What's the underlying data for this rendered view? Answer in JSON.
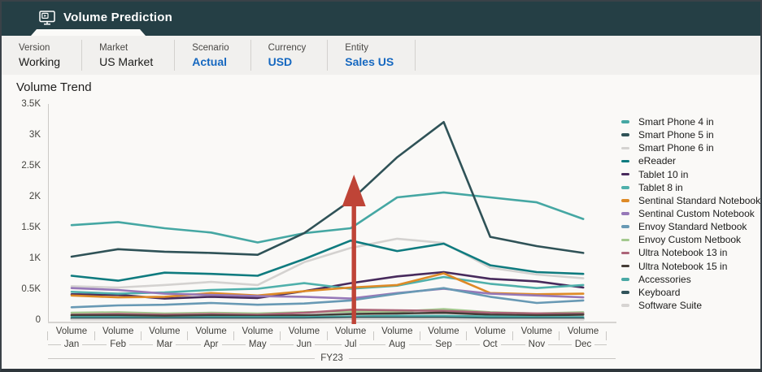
{
  "header": {
    "title": "Volume Prediction",
    "icon": "monitor-play-icon"
  },
  "colors": {
    "header_bg": "#253F45",
    "pov_link_blue": "#1668C0",
    "annotation_red": "#BF4437"
  },
  "pov": {
    "items": [
      {
        "label": "Version",
        "value": "Working",
        "link": false
      },
      {
        "label": "Market",
        "value": "US Market",
        "link": false
      },
      {
        "label": "Scenario",
        "value": "Actual",
        "link": true
      },
      {
        "label": "Currency",
        "value": "USD",
        "link": true
      },
      {
        "label": "Entity",
        "value": "Sales US",
        "link": true
      }
    ]
  },
  "chart_data": {
    "type": "line",
    "title": "Volume Trend",
    "legend_position": "right",
    "grid": false,
    "y_axis": {
      "min": 0,
      "max": 3500,
      "ticks": [
        "3.5K",
        "3K",
        "2.5K",
        "2K",
        "1.5K",
        "1K",
        "0.5K",
        "0"
      ]
    },
    "x_axis": {
      "measure_label": "Volume",
      "group_label": "FY23",
      "categories": [
        "Jan",
        "Feb",
        "Mar",
        "Apr",
        "May",
        "Jun",
        "Jul",
        "Aug",
        "Sep",
        "Oct",
        "Nov",
        "Dec"
      ]
    },
    "annotation": {
      "shape": "arrow-up",
      "color": "#BF4437",
      "x_category": "Jul"
    },
    "series": [
      {
        "name": "Smart Phone 4 in",
        "color": "#45A7A3",
        "values": [
          1550,
          1600,
          1500,
          1430,
          1270,
          1420,
          1500,
          2000,
          2080,
          2000,
          1920,
          1650
        ]
      },
      {
        "name": "Smart Phone 5 in",
        "color": "#2F5257",
        "values": [
          1040,
          1160,
          1120,
          1100,
          1070,
          1420,
          1950,
          2650,
          3220,
          1360,
          1210,
          1100
        ]
      },
      {
        "name": "Smart Phone 6 in",
        "color": "#D4D2D0",
        "values": [
          560,
          540,
          580,
          630,
          580,
          950,
          1180,
          1330,
          1260,
          860,
          750,
          690
        ]
      },
      {
        "name": "eReader",
        "color": "#0F7B7F",
        "values": [
          730,
          650,
          780,
          760,
          730,
          1000,
          1300,
          1130,
          1250,
          900,
          790,
          760
        ]
      },
      {
        "name": "Tablet 10 in",
        "color": "#472A5C",
        "values": [
          430,
          420,
          360,
          390,
          370,
          480,
          610,
          720,
          790,
          680,
          640,
          540
        ]
      },
      {
        "name": "Tablet 8 in",
        "color": "#4FB0AB",
        "values": [
          470,
          440,
          460,
          500,
          520,
          610,
          520,
          570,
          710,
          600,
          530,
          580
        ]
      },
      {
        "name": "Sentinal Standard Notebook",
        "color": "#DE8A26",
        "values": [
          410,
          380,
          390,
          450,
          410,
          480,
          540,
          580,
          770,
          450,
          430,
          440
        ]
      },
      {
        "name": "Sentinal Custom Notebook",
        "color": "#9678B8",
        "values": [
          530,
          500,
          440,
          420,
          400,
          390,
          360,
          450,
          520,
          440,
          410,
          380
        ]
      },
      {
        "name": "Envoy Standard Netbook",
        "color": "#6899B4",
        "values": [
          220,
          250,
          260,
          290,
          260,
          280,
          330,
          440,
          530,
          390,
          290,
          330
        ]
      },
      {
        "name": "Envoy Custom Netbook",
        "color": "#A3C98E",
        "values": [
          130,
          140,
          120,
          130,
          120,
          140,
          150,
          150,
          190,
          140,
          120,
          140
        ]
      },
      {
        "name": "Ultra Notebook 13 in",
        "color": "#AC6478",
        "values": [
          100,
          110,
          100,
          110,
          100,
          130,
          180,
          170,
          160,
          130,
          120,
          120
        ]
      },
      {
        "name": "Ultra Notebook 15 in",
        "color": "#463D37",
        "values": [
          90,
          90,
          80,
          90,
          80,
          90,
          110,
          120,
          130,
          100,
          90,
          100
        ]
      },
      {
        "name": "Accessories",
        "color": "#4AA9A5",
        "values": [
          60,
          60,
          50,
          60,
          60,
          60,
          70,
          80,
          80,
          70,
          60,
          60
        ]
      },
      {
        "name": "Keyboard",
        "color": "#30535A",
        "values": [
          40,
          40,
          40,
          40,
          40,
          40,
          50,
          50,
          50,
          40,
          40,
          40
        ]
      },
      {
        "name": "Software Suite",
        "color": "#D6D4D2",
        "values": [
          20,
          20,
          20,
          20,
          20,
          20,
          30,
          30,
          30,
          20,
          20,
          20
        ]
      }
    ]
  }
}
